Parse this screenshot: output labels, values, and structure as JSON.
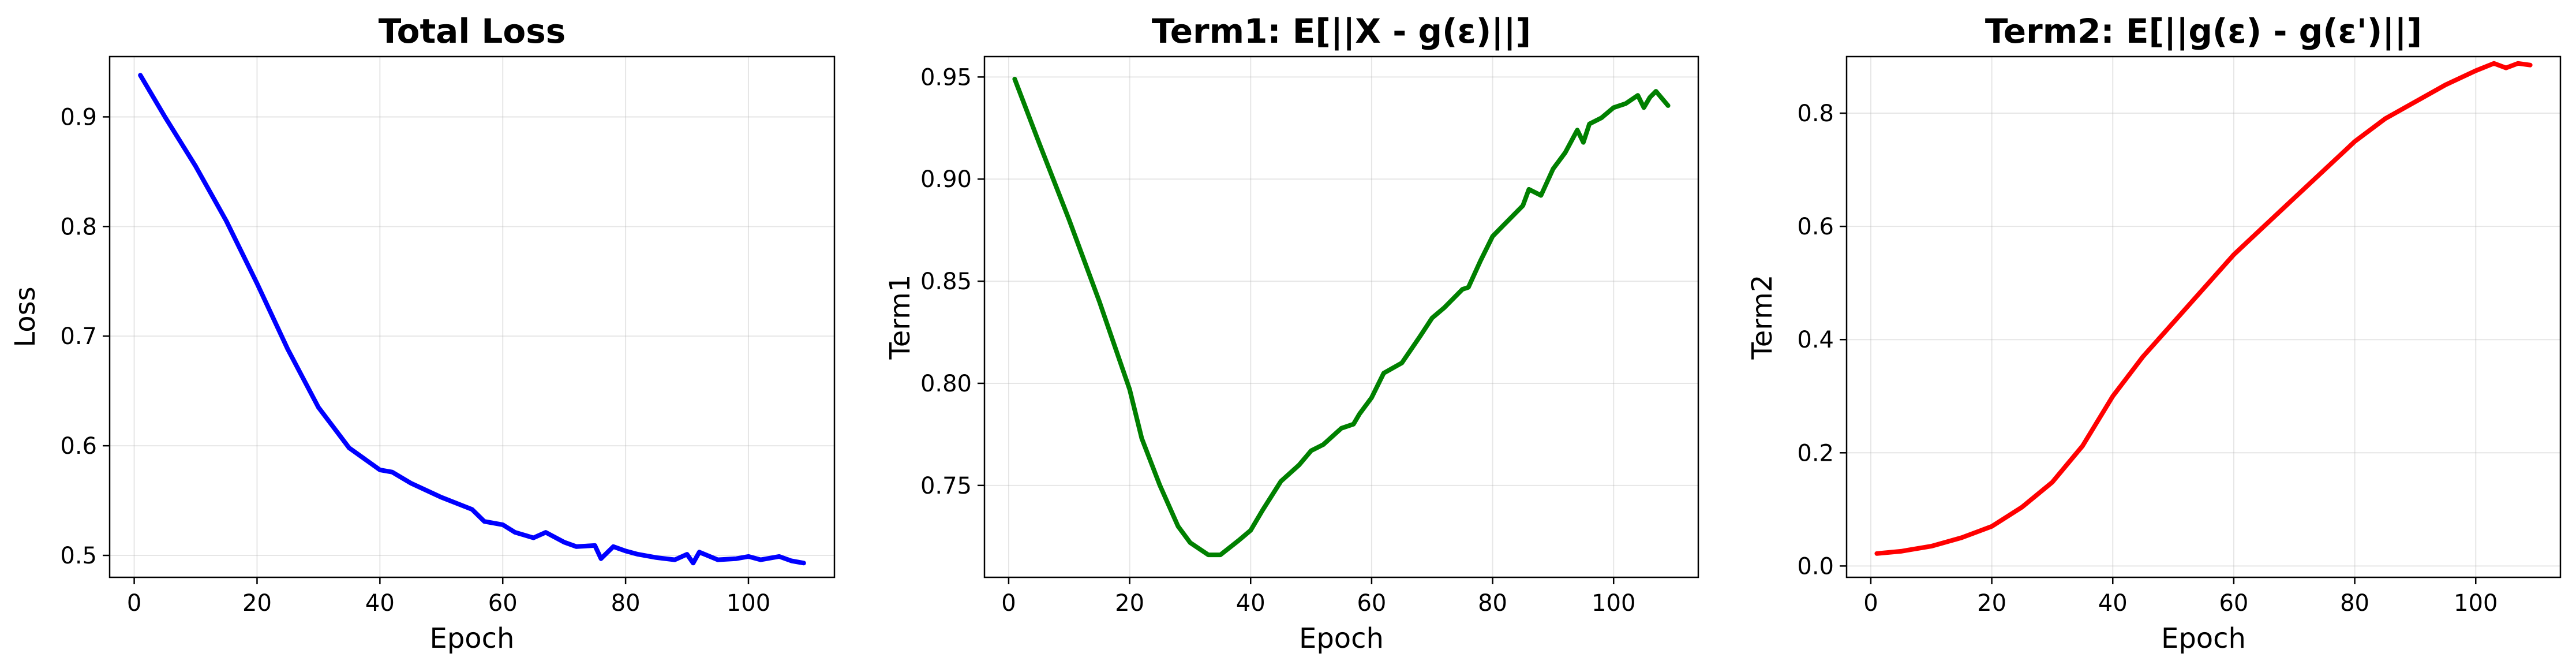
{
  "chart_data": [
    {
      "type": "line",
      "title": "Total Loss",
      "xlabel": "Epoch",
      "ylabel": "Loss",
      "xlim": [
        -4,
        114
      ],
      "ylim": [
        0.48,
        0.955
      ],
      "xticks": [
        0,
        20,
        40,
        60,
        80,
        100
      ],
      "yticks": [
        0.5,
        0.6,
        0.7,
        0.8,
        0.9
      ],
      "ytick_labels": [
        "0.5",
        "0.6",
        "0.7",
        "0.8",
        "0.9"
      ],
      "grid": true,
      "color": "#0000ff",
      "series": [
        {
          "x": [
            1,
            5,
            10,
            15,
            20,
            25,
            30,
            35,
            40,
            42,
            45,
            50,
            55,
            57,
            60,
            62,
            65,
            67,
            70,
            72,
            75,
            76,
            78,
            80,
            82,
            85,
            88,
            90,
            91,
            92,
            95,
            98,
            100,
            102,
            105,
            107,
            109
          ],
          "y": [
            0.938,
            0.9,
            0.855,
            0.805,
            0.748,
            0.688,
            0.635,
            0.598,
            0.578,
            0.576,
            0.566,
            0.553,
            0.542,
            0.531,
            0.528,
            0.521,
            0.516,
            0.521,
            0.512,
            0.508,
            0.509,
            0.497,
            0.508,
            0.504,
            0.501,
            0.498,
            0.496,
            0.501,
            0.493,
            0.503,
            0.496,
            0.497,
            0.499,
            0.496,
            0.499,
            0.495,
            0.493
          ]
        }
      ]
    },
    {
      "type": "line",
      "title": "Term1: E[||X - g(ε)||]",
      "xlabel": "Epoch",
      "ylabel": "Term1",
      "xlim": [
        -4,
        114
      ],
      "ylim": [
        0.705,
        0.96
      ],
      "xticks": [
        0,
        20,
        40,
        60,
        80,
        100
      ],
      "yticks": [
        0.75,
        0.8,
        0.85,
        0.9,
        0.95
      ],
      "ytick_labels": [
        "0.75",
        "0.80",
        "0.85",
        "0.90",
        "0.95"
      ],
      "grid": true,
      "color": "#008000",
      "series": [
        {
          "x": [
            1,
            5,
            10,
            15,
            20,
            22,
            25,
            28,
            30,
            33,
            35,
            38,
            40,
            42,
            45,
            48,
            50,
            52,
            55,
            57,
            58,
            60,
            62,
            65,
            68,
            70,
            72,
            75,
            76,
            78,
            80,
            82,
            85,
            86,
            88,
            90,
            92,
            94,
            95,
            96,
            98,
            100,
            102,
            104,
            105,
            106,
            107,
            109
          ],
          "y": [
            0.949,
            0.918,
            0.88,
            0.84,
            0.797,
            0.773,
            0.75,
            0.73,
            0.722,
            0.716,
            0.716,
            0.723,
            0.728,
            0.738,
            0.752,
            0.76,
            0.767,
            0.77,
            0.778,
            0.78,
            0.785,
            0.793,
            0.805,
            0.81,
            0.823,
            0.832,
            0.837,
            0.846,
            0.847,
            0.86,
            0.872,
            0.878,
            0.887,
            0.895,
            0.892,
            0.905,
            0.913,
            0.924,
            0.918,
            0.927,
            0.93,
            0.935,
            0.937,
            0.941,
            0.935,
            0.94,
            0.943,
            0.936
          ]
        }
      ]
    },
    {
      "type": "line",
      "title": "Term2: E[||g(ε) - g(ε')||]",
      "xlabel": "Epoch",
      "ylabel": "Term2",
      "xlim": [
        -4,
        114
      ],
      "ylim": [
        -0.02,
        0.9
      ],
      "xticks": [
        0,
        20,
        40,
        60,
        80,
        100
      ],
      "yticks": [
        0.0,
        0.2,
        0.4,
        0.6,
        0.8
      ],
      "ytick_labels": [
        "0.0",
        "0.2",
        "0.4",
        "0.6",
        "0.8"
      ],
      "grid": true,
      "color": "#ff0000",
      "series": [
        {
          "x": [
            1,
            5,
            10,
            15,
            20,
            25,
            30,
            35,
            40,
            45,
            50,
            55,
            60,
            65,
            70,
            75,
            80,
            85,
            90,
            95,
            100,
            103,
            105,
            107,
            109
          ],
          "y": [
            0.022,
            0.026,
            0.035,
            0.05,
            0.07,
            0.104,
            0.148,
            0.212,
            0.3,
            0.37,
            0.43,
            0.49,
            0.55,
            0.6,
            0.65,
            0.7,
            0.75,
            0.79,
            0.82,
            0.85,
            0.875,
            0.888,
            0.88,
            0.888,
            0.885
          ]
        }
      ]
    }
  ]
}
